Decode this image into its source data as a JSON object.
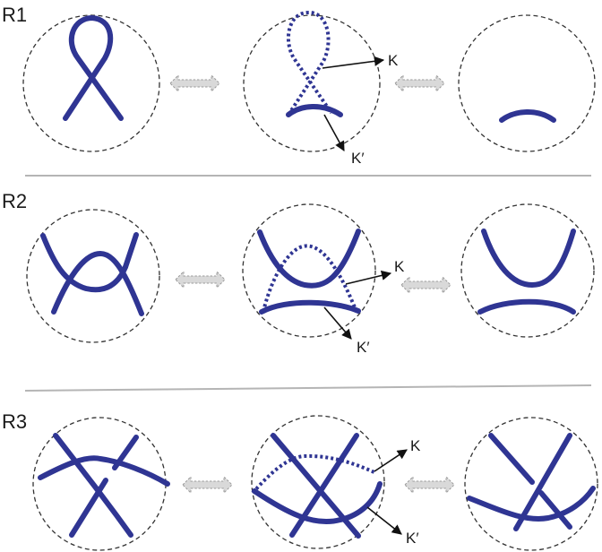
{
  "rows": [
    {
      "label": "R1",
      "k_label": "K",
      "k_prime_label": "K′"
    },
    {
      "label": "R2",
      "k_label": "K",
      "k_prime_label": "K′"
    },
    {
      "label": "R3",
      "k_label": "K",
      "k_prime_label": "K′"
    }
  ],
  "colors": {
    "strand": "#2f3593",
    "disc": "#333333",
    "arrow_fill": "#d9d9d9"
  },
  "icons": {
    "equivalence": "double-headed-arrow-icon",
    "pointer": "arrowhead-icon"
  }
}
